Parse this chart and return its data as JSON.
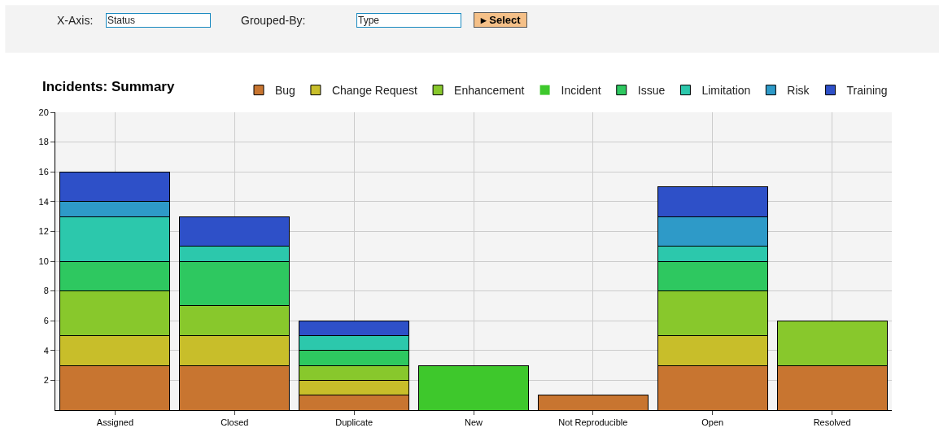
{
  "chart_data": {
    "type": "bar",
    "title": "Incidents: Summary",
    "stacked": true,
    "categories": [
      "Assigned",
      "Closed",
      "Duplicate",
      "New",
      "Not Reproducible",
      "Open",
      "Resolved"
    ],
    "series": [
      {
        "name": "Bug",
        "color": "#c87530",
        "values": [
          3,
          3,
          1,
          0,
          1,
          3,
          3
        ]
      },
      {
        "name": "Change Request",
        "color": "#c8be2a",
        "values": [
          2,
          2,
          1,
          0,
          0,
          2,
          0
        ]
      },
      {
        "name": "Enhancement",
        "color": "#88c82c",
        "values": [
          3,
          2,
          1,
          0,
          0,
          3,
          3
        ]
      },
      {
        "name": "Incident",
        "color": "#3ec82c",
        "values": [
          0,
          0,
          0,
          3,
          0,
          0,
          0
        ]
      },
      {
        "name": "Issue",
        "color": "#2ec860",
        "values": [
          2,
          3,
          1,
          0,
          0,
          2,
          0
        ]
      },
      {
        "name": "Limitation",
        "color": "#2cc8ac",
        "values": [
          3,
          1,
          1,
          0,
          0,
          1,
          0
        ]
      },
      {
        "name": "Risk",
        "color": "#2e9ac8",
        "values": [
          1,
          0,
          0,
          0,
          0,
          2,
          0
        ]
      },
      {
        "name": "Training",
        "color": "#2e50c8",
        "values": [
          2,
          2,
          1,
          0,
          0,
          2,
          0
        ]
      }
    ],
    "ylim": [
      0,
      20
    ],
    "yticks": [
      2,
      4,
      6,
      8,
      10,
      12,
      14,
      16,
      18,
      20
    ],
    "grid": true,
    "legend": "top right",
    "annotations": [
      "X-Axis:",
      "Status",
      "Grouped-By:",
      "Type",
      "▸ Select"
    ]
  }
}
